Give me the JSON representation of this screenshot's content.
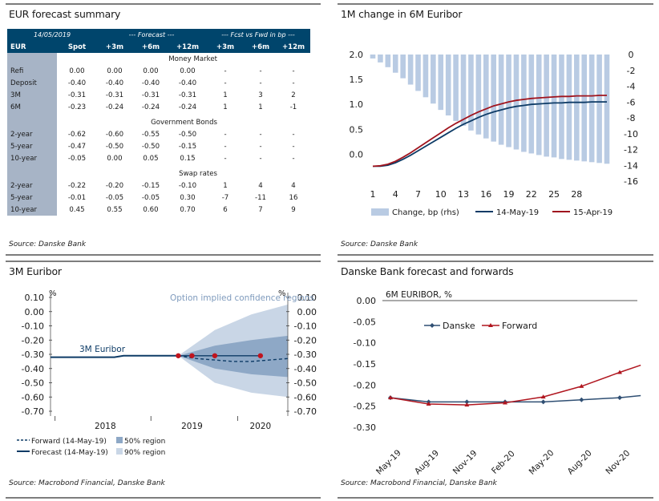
{
  "panels": {
    "table_title": "EUR forecast summary",
    "table_source": "Source: Danske Bank",
    "chart1_title": "1M change in 6M Euribor",
    "chart1_source": "Source: Danske Bank",
    "chart2_title": "3M Euribor",
    "chart2_source": "Source: Macrobond Financial, Danske Bank",
    "chart3_title": "Danske Bank forecast and forwards",
    "chart3_source": "Source: Macrobond Financial, Danske Bank"
  },
  "forecast_table": {
    "date": "14/05/2019",
    "forecast_header": "--- Forecast ---",
    "fcst_fwd_header": "--- Fcst vs Fwd in bp ---",
    "columns": [
      "EUR",
      "Spot",
      "+3m",
      "+6m",
      "+12m",
      "+3m",
      "+6m",
      "+12m"
    ],
    "sections": [
      {
        "title": "Money Market",
        "rows": [
          [
            "Refi",
            "0.00",
            "0.00",
            "0.00",
            "0.00",
            "-",
            "-",
            "-"
          ],
          [
            "Deposit",
            "-0.40",
            "-0.40",
            "-0.40",
            "-0.40",
            "-",
            "-",
            "-"
          ],
          [
            "3M",
            "-0.31",
            "-0.31",
            "-0.31",
            "-0.31",
            "1",
            "3",
            "2"
          ],
          [
            "6M",
            "-0.23",
            "-0.24",
            "-0.24",
            "-0.24",
            "1",
            "1",
            "-1"
          ]
        ]
      },
      {
        "title": "Government Bonds",
        "rows": [
          [
            "2-year",
            "-0.62",
            "-0.60",
            "-0.55",
            "-0.50",
            "-",
            "-",
            "-"
          ],
          [
            "5-year",
            "-0.47",
            "-0.50",
            "-0.50",
            "-0.15",
            "-",
            "-",
            "-"
          ],
          [
            "10-year",
            "-0.05",
            "0.00",
            "0.05",
            "0.15",
            "-",
            "-",
            "-"
          ]
        ]
      },
      {
        "title": "Swap rates",
        "rows": [
          [
            "2-year",
            "-0.22",
            "-0.20",
            "-0.15",
            "-0.10",
            "1",
            "4",
            "4"
          ],
          [
            "5-year",
            "-0.01",
            "-0.05",
            "-0.05",
            "0.30",
            "-7",
            "-11",
            "16"
          ],
          [
            "10-year",
            "0.45",
            "0.55",
            "0.60",
            "0.70",
            "6",
            "7",
            "9"
          ]
        ]
      }
    ]
  },
  "chart_data": [
    {
      "id": "chart1",
      "type": "line",
      "title": "1M change in 6M Euribor",
      "x": [
        1,
        2,
        3,
        4,
        5,
        6,
        7,
        8,
        9,
        10,
        11,
        12,
        13,
        14,
        15,
        16,
        17,
        18,
        19,
        20,
        21,
        22,
        23,
        24,
        25,
        26,
        27,
        28,
        29,
        30,
        31,
        32
      ],
      "x_ticks": [
        "1",
        "4",
        "7",
        "10",
        "13",
        "16",
        "19",
        "22",
        "25",
        "28"
      ],
      "y_left_ticks": [
        "2.0",
        "1.5",
        "1.0",
        "0.5",
        "0.0"
      ],
      "y_left_range": [
        -0.25,
        2.0
      ],
      "y_right_ticks": [
        "0",
        "-2",
        "-4",
        "-6",
        "-8",
        "-10",
        "-12",
        "-14",
        "-16"
      ],
      "y_right_range": [
        -16,
        0
      ],
      "series": [
        {
          "name": "Change, bp (rhs)",
          "axis": "right",
          "kind": "bar",
          "color": "#b9cbe3",
          "values": [
            -0.5,
            -1.0,
            -1.6,
            -2.3,
            -3.0,
            -3.8,
            -4.6,
            -5.4,
            -6.2,
            -7.0,
            -7.7,
            -8.4,
            -9.0,
            -9.6,
            -10.1,
            -10.6,
            -11.0,
            -11.4,
            -11.7,
            -12.0,
            -12.3,
            -12.5,
            -12.7,
            -12.9,
            -13.0,
            -13.2,
            -13.3,
            -13.4,
            -13.5,
            -13.6,
            -13.7,
            -13.8
          ]
        },
        {
          "name": "14-May-19",
          "axis": "left",
          "kind": "line",
          "color": "#0d3b66",
          "values": [
            -0.24,
            -0.24,
            -0.22,
            -0.17,
            -0.1,
            -0.02,
            0.07,
            0.16,
            0.25,
            0.34,
            0.43,
            0.52,
            0.6,
            0.67,
            0.74,
            0.8,
            0.85,
            0.89,
            0.93,
            0.96,
            0.98,
            1.0,
            1.01,
            1.02,
            1.03,
            1.03,
            1.04,
            1.04,
            1.04,
            1.05,
            1.05,
            1.05
          ]
        },
        {
          "name": "15-Apr-19",
          "axis": "left",
          "kind": "line",
          "color": "#a0141e",
          "values": [
            -0.24,
            -0.23,
            -0.2,
            -0.14,
            -0.06,
            0.03,
            0.13,
            0.23,
            0.33,
            0.43,
            0.53,
            0.62,
            0.7,
            0.78,
            0.85,
            0.91,
            0.97,
            1.01,
            1.05,
            1.08,
            1.1,
            1.12,
            1.13,
            1.14,
            1.15,
            1.16,
            1.16,
            1.17,
            1.17,
            1.17,
            1.18,
            1.18
          ]
        }
      ],
      "legend_position": "bottom"
    },
    {
      "id": "chart2",
      "type": "area",
      "title": "3M Euribor",
      "y_unit_left": "%",
      "y_unit_right": "%",
      "y_ticks": [
        "0.10",
        "0.00",
        "-0.10",
        "-0.20",
        "-0.30",
        "-0.40",
        "-0.50",
        "-0.60",
        "-0.70"
      ],
      "y_range": [
        -0.7,
        0.1
      ],
      "x_labels": [
        "2018",
        "2019",
        "2020"
      ],
      "annotations": [
        "Option implied confidence regions",
        "3M Euribor"
      ],
      "history": {
        "name": "3M Euribor",
        "t": [
          0,
          0.1,
          0.2,
          0.3,
          0.4,
          0.5,
          0.6,
          0.7,
          0.8,
          0.9,
          1.0,
          1.1,
          1.2,
          1.3,
          1.4
        ],
        "values": [
          -0.32,
          -0.32,
          -0.32,
          -0.32,
          -0.32,
          -0.32,
          -0.32,
          -0.32,
          -0.31,
          -0.31,
          -0.31,
          -0.31,
          -0.31,
          -0.31,
          -0.31
        ]
      },
      "forward": {
        "name": "Forward (14-May-19)",
        "t": [
          1.4,
          1.6,
          1.8,
          2.0,
          2.2,
          2.4,
          2.6
        ],
        "values": [
          -0.31,
          -0.33,
          -0.34,
          -0.35,
          -0.35,
          -0.34,
          -0.33
        ]
      },
      "forecast": {
        "name": "Forecast (14-May-19)",
        "t": [
          1.4,
          1.55,
          1.8,
          2.3
        ],
        "values": [
          -0.31,
          -0.31,
          -0.31,
          -0.31
        ]
      },
      "region_50": {
        "name": "50% region",
        "t": [
          1.4,
          1.8,
          2.2,
          2.6
        ],
        "upper": [
          -0.31,
          -0.24,
          -0.2,
          -0.17
        ],
        "lower": [
          -0.31,
          -0.4,
          -0.44,
          -0.46
        ]
      },
      "region_90": {
        "name": "90% region",
        "t": [
          1.4,
          1.8,
          2.2,
          2.6
        ],
        "upper": [
          -0.31,
          -0.13,
          -0.02,
          0.05
        ],
        "lower": [
          -0.31,
          -0.5,
          -0.57,
          -0.6
        ]
      },
      "legend_items": [
        "Forward (14-May-19)",
        "50% region",
        "Forecast (14-May-19)",
        "90% region"
      ]
    },
    {
      "id": "chart3",
      "type": "line",
      "title": "6M EURIBOR, %",
      "categories": [
        "May-19",
        "Aug-19",
        "Nov-19",
        "Feb-20",
        "May-20",
        "Aug-20",
        "Nov-20"
      ],
      "y_ticks": [
        "0.00",
        "-0.05",
        "-0.10",
        "-0.15",
        "-0.20",
        "-0.25",
        "-0.30"
      ],
      "y_range": [
        -0.3,
        0.0
      ],
      "series": [
        {
          "name": "Danske",
          "color": "#2f4f73",
          "x": [
            0,
            1,
            2,
            3,
            4,
            5,
            6,
            6.55
          ],
          "values": [
            -0.23,
            -0.24,
            -0.24,
            -0.24,
            -0.24,
            -0.235,
            -0.23,
            -0.225
          ]
        },
        {
          "name": "Forward",
          "color": "#b0161f",
          "x": [
            0,
            1,
            2,
            3,
            4,
            5,
            6,
            6.55
          ],
          "values": [
            -0.23,
            -0.245,
            -0.247,
            -0.242,
            -0.228,
            -0.203,
            -0.17,
            -0.153
          ]
        }
      ],
      "legend_position": "top-left"
    }
  ]
}
